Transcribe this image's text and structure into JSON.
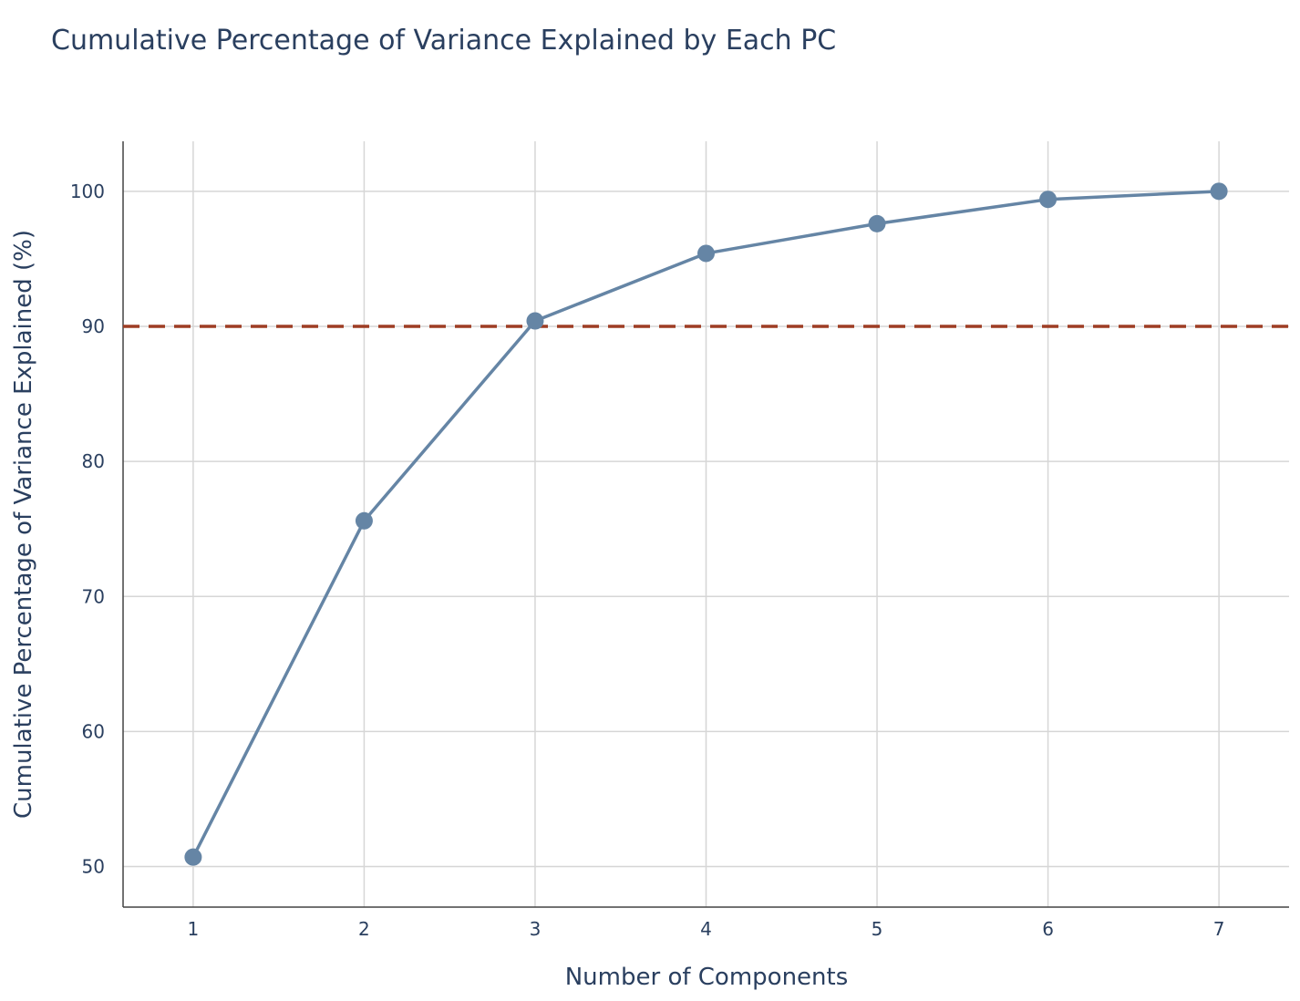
{
  "chart_data": {
    "type": "line",
    "title": "Cumulative Percentage of Variance Explained by Each PC",
    "xlabel": "Number of Components",
    "ylabel": "Cumulative Percentage of Variance Explained (%)",
    "x": [
      1,
      2,
      3,
      4,
      5,
      6,
      7
    ],
    "y": [
      50.7,
      75.6,
      90.4,
      95.4,
      97.6,
      99.4,
      100.0
    ],
    "xlim": [
      0.59,
      7.41
    ],
    "ylim": [
      47.0,
      103.7
    ],
    "xticks": [
      1,
      2,
      3,
      4,
      5,
      6,
      7
    ],
    "yticks": [
      50,
      60,
      70,
      80,
      90,
      100
    ],
    "threshold": 90,
    "grid": true,
    "legend": "none",
    "colors": {
      "series": "#6585a5",
      "threshold": "#9e3d24",
      "grid": "#d6d6d6",
      "text": "#2a3f5f"
    }
  }
}
